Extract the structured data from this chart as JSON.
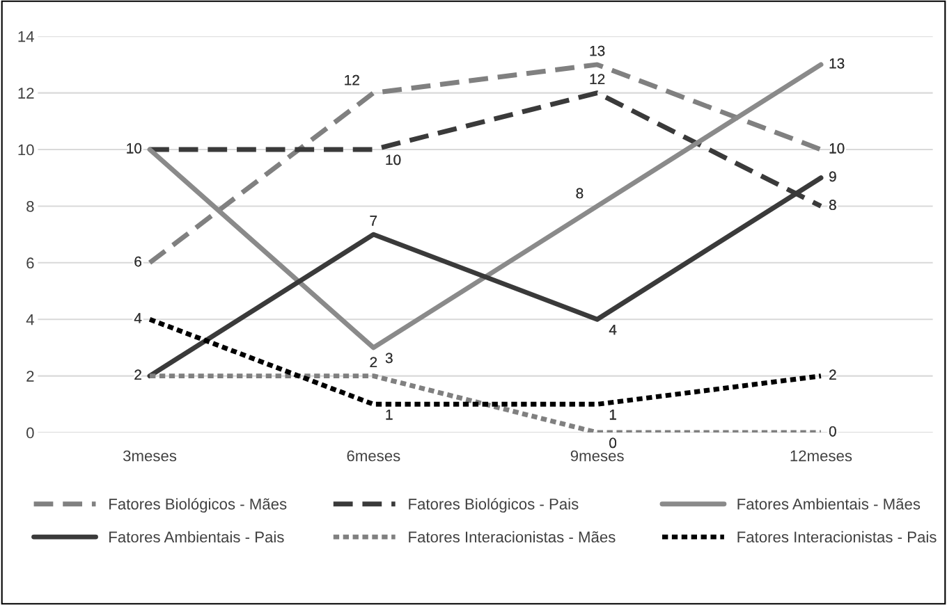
{
  "chart_data": {
    "type": "line",
    "categories": [
      "3meses",
      "6meses",
      "9meses",
      "12meses"
    ],
    "series": [
      {
        "name": "Fatores Biológicos - Mães",
        "color": "#808080",
        "line_style": "dashed",
        "values": [
          6,
          12,
          13,
          10
        ],
        "value_labels": [
          "6",
          "12",
          "13",
          "10"
        ]
      },
      {
        "name": "Fatores Biológicos - Pais",
        "color": "#3a3a3a",
        "line_style": "dashed",
        "values": [
          10,
          10,
          12,
          8
        ],
        "value_labels": [
          "10",
          "10",
          "12",
          "8"
        ]
      },
      {
        "name": "Fatores Ambientais - Mães",
        "color": "#8a8a8a",
        "line_style": "solid",
        "values": [
          10,
          3,
          8,
          13
        ],
        "value_labels": [
          null,
          "3",
          "8",
          "13"
        ]
      },
      {
        "name": "Fatores Ambientais - Pais",
        "color": "#3a3a3a",
        "line_style": "solid",
        "values": [
          2,
          7,
          4,
          9
        ],
        "value_labels": [
          "2",
          "7",
          "4",
          "9"
        ]
      },
      {
        "name": "Fatores Interacionistas - Mães",
        "color": "#808080",
        "line_style": "dotted",
        "values": [
          2,
          2,
          0,
          0
        ],
        "value_labels": [
          null,
          "2",
          "0",
          "0"
        ]
      },
      {
        "name": "Fatores Interacionistas - Pais",
        "color": "#000000",
        "line_style": "dotted",
        "values": [
          4,
          1,
          1,
          2
        ],
        "value_labels": [
          "4",
          "1",
          "1",
          "2"
        ]
      }
    ],
    "ylim": [
      0,
      14
    ],
    "yticks": [
      0,
      2,
      4,
      6,
      8,
      10,
      12,
      14
    ],
    "grid": "y",
    "legend": "bottom"
  }
}
